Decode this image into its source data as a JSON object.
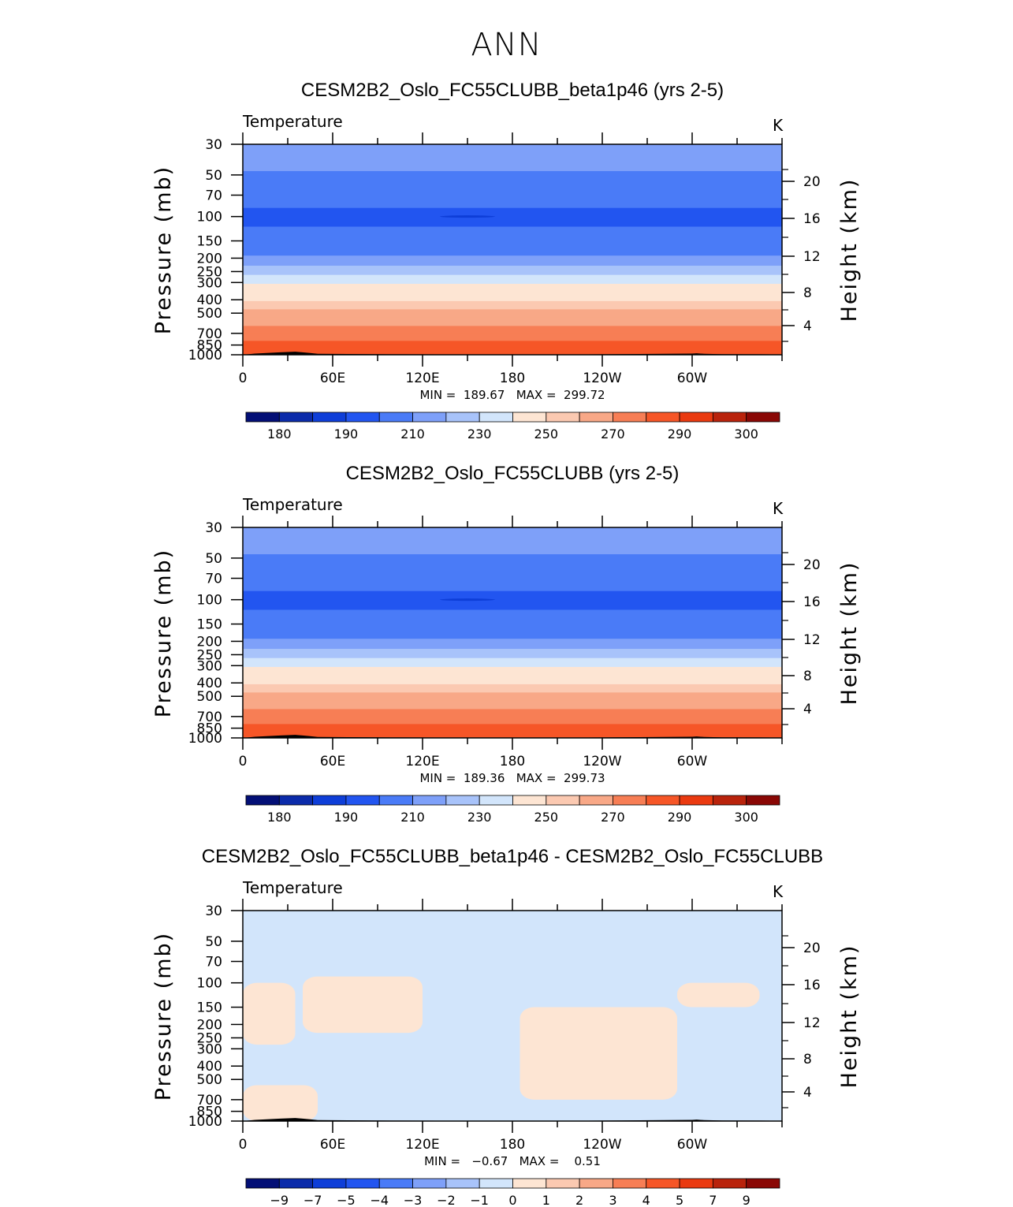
{
  "figure_title": "ANN",
  "chart_data": [
    {
      "type": "heatmap",
      "title": "CESM2B2_Oslo_FC55CLUBB_beta1p46 (yrs 2-5)",
      "variable": "Temperature",
      "units": "K",
      "ylabel": "Pressure (mb)",
      "ylabel_right": "Height (km)",
      "x_ticks": [
        "0",
        "60E",
        "120E",
        "180",
        "120W",
        "60W"
      ],
      "y_ticks": [
        30,
        50,
        70,
        100,
        150,
        200,
        250,
        300,
        400,
        500,
        700,
        850,
        1000
      ],
      "y_ticks_right": [
        20,
        16,
        12,
        8,
        4
      ],
      "ylim": [
        1000,
        30
      ],
      "y_scale": "log",
      "min_max_text": "MIN =  189.67   MAX =  299.72",
      "min": 189.67,
      "max": 299.72,
      "colorbar_labels": [
        "180",
        "190",
        "210",
        "230",
        "250",
        "270",
        "290",
        "300"
      ],
      "profile_levels": [
        {
          "pressure": 30,
          "value": 215
        },
        {
          "pressure": 40,
          "value": 211
        },
        {
          "pressure": 55,
          "value": 207
        },
        {
          "pressure": 75,
          "value": 200
        },
        {
          "pressure": 100,
          "value": 196
        },
        {
          "pressure": 140,
          "value": 203
        },
        {
          "pressure": 175,
          "value": 208
        },
        {
          "pressure": 210,
          "value": 214
        },
        {
          "pressure": 245,
          "value": 222
        },
        {
          "pressure": 285,
          "value": 232
        },
        {
          "pressure": 330,
          "value": 241
        },
        {
          "pressure": 380,
          "value": 247
        },
        {
          "pressure": 440,
          "value": 254
        },
        {
          "pressure": 500,
          "value": 260
        },
        {
          "pressure": 580,
          "value": 266
        },
        {
          "pressure": 660,
          "value": 272
        },
        {
          "pressure": 750,
          "value": 277
        },
        {
          "pressure": 840,
          "value": 282
        },
        {
          "pressure": 920,
          "value": 286
        },
        {
          "pressure": 1000,
          "value": 289
        }
      ]
    },
    {
      "type": "heatmap",
      "title": "CESM2B2_Oslo_FC55CLUBB (yrs 2-5)",
      "variable": "Temperature",
      "units": "K",
      "ylabel": "Pressure (mb)",
      "ylabel_right": "Height (km)",
      "x_ticks": [
        "0",
        "60E",
        "120E",
        "180",
        "120W",
        "60W"
      ],
      "y_ticks": [
        30,
        50,
        70,
        100,
        150,
        200,
        250,
        300,
        400,
        500,
        700,
        850,
        1000
      ],
      "y_ticks_right": [
        20,
        16,
        12,
        8,
        4
      ],
      "ylim": [
        1000,
        30
      ],
      "y_scale": "log",
      "min_max_text": "MIN =  189.36   MAX =  299.73",
      "min": 189.36,
      "max": 299.73,
      "colorbar_labels": [
        "180",
        "190",
        "210",
        "230",
        "250",
        "270",
        "290",
        "300"
      ],
      "profile_levels": [
        {
          "pressure": 30,
          "value": 215
        },
        {
          "pressure": 40,
          "value": 211
        },
        {
          "pressure": 55,
          "value": 207
        },
        {
          "pressure": 75,
          "value": 200
        },
        {
          "pressure": 100,
          "value": 196
        },
        {
          "pressure": 140,
          "value": 203
        },
        {
          "pressure": 175,
          "value": 208
        },
        {
          "pressure": 210,
          "value": 214
        },
        {
          "pressure": 245,
          "value": 222
        },
        {
          "pressure": 285,
          "value": 232
        },
        {
          "pressure": 330,
          "value": 241
        },
        {
          "pressure": 380,
          "value": 247
        },
        {
          "pressure": 440,
          "value": 254
        },
        {
          "pressure": 500,
          "value": 260
        },
        {
          "pressure": 580,
          "value": 266
        },
        {
          "pressure": 660,
          "value": 272
        },
        {
          "pressure": 750,
          "value": 277
        },
        {
          "pressure": 840,
          "value": 282
        },
        {
          "pressure": 920,
          "value": 286
        },
        {
          "pressure": 1000,
          "value": 289
        }
      ]
    },
    {
      "type": "heatmap",
      "title": "CESM2B2_Oslo_FC55CLUBB_beta1p46 - CESM2B2_Oslo_FC55CLUBB",
      "variable": "Temperature",
      "units": "K",
      "ylabel": "Pressure (mb)",
      "ylabel_right": "Height (km)",
      "x_ticks": [
        "0",
        "60E",
        "120E",
        "180",
        "120W",
        "60W"
      ],
      "y_ticks": [
        30,
        50,
        70,
        100,
        150,
        200,
        250,
        300,
        400,
        500,
        700,
        850,
        1000
      ],
      "y_ticks_right": [
        20,
        16,
        12,
        8,
        4
      ],
      "ylim": [
        1000,
        30
      ],
      "y_scale": "log",
      "min_max_text": "MIN =   −0.67   MAX =    0.51",
      "min": -0.67,
      "max": 0.51,
      "colorbar_labels": [
        "−9",
        "−7",
        "−5",
        "−4",
        "−3",
        "−2",
        "−1",
        "0",
        "1",
        "2",
        "3",
        "4",
        "5",
        "7",
        "9"
      ],
      "background_class": "-1 to 0",
      "positive_regions": [
        {
          "lon_range": [
            0,
            35
          ],
          "pressure_range": [
            100,
            280
          ],
          "class": "0 to 1"
        },
        {
          "lon_range": [
            40,
            120
          ],
          "pressure_range": [
            90,
            230
          ],
          "class": "0 to 1"
        },
        {
          "lon_range": [
            185,
            290
          ],
          "pressure_range": [
            150,
            700
          ],
          "class": "0 to 1"
        },
        {
          "lon_range": [
            290,
            345
          ],
          "pressure_range": [
            100,
            150
          ],
          "class": "0 to 1"
        },
        {
          "lon_range": [
            0,
            50
          ],
          "pressure_range": [
            550,
            1000
          ],
          "class": "0 to 1"
        }
      ]
    }
  ],
  "colors": {
    "temperature_scale": [
      "#030F76",
      "#0B2BAA",
      "#0E3ED8",
      "#2255F0",
      "#4A7BF7",
      "#7EA0F9",
      "#A8C3FA",
      "#D2E5FB",
      "#FDE5D3",
      "#FBC9B1",
      "#F8A887",
      "#F77E55",
      "#F65627",
      "#EA3A10",
      "#B9230C",
      "#8A0805"
    ],
    "difference_scale": [
      "#030F76",
      "#0B2BAA",
      "#0E3ED8",
      "#2255F0",
      "#4A7BF7",
      "#7EA0F9",
      "#A8C3FA",
      "#D2E5FB",
      "#FDE5D3",
      "#FBC9B1",
      "#F8A887",
      "#F77E55",
      "#F65627",
      "#EA3A10",
      "#B9230C",
      "#8A0805"
    ],
    "topography": "#000000"
  }
}
